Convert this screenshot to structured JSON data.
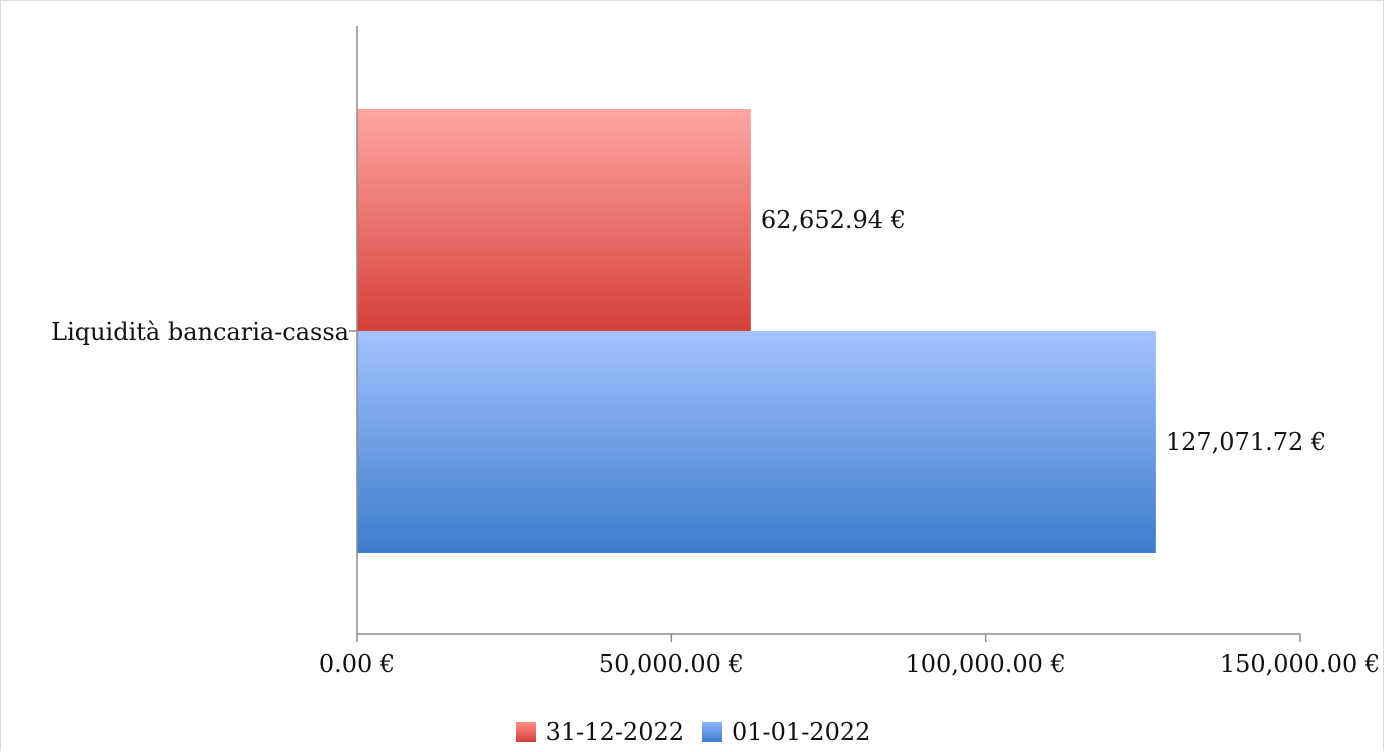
{
  "chart_data": {
    "type": "bar",
    "orientation": "horizontal",
    "categories": [
      "Liquidità bancaria-cassa"
    ],
    "series": [
      {
        "name": "31-12-2022",
        "values": [
          62652.94
        ],
        "value_labels": [
          "62,652.94 €"
        ],
        "color": "#d9423d"
      },
      {
        "name": "01-01-2022",
        "values": [
          127071.72
        ],
        "value_labels": [
          "127,071.72 €"
        ],
        "color": "#3f7fcc"
      }
    ],
    "xlim": [
      0,
      150000
    ],
    "x_ticks": [
      0,
      50000,
      100000,
      150000
    ],
    "x_tick_labels": [
      "0.00 €",
      "50,000.00 €",
      "100,000.00 €",
      "150,000.00 €"
    ],
    "grid": false,
    "legend_position": "bottom-center"
  }
}
